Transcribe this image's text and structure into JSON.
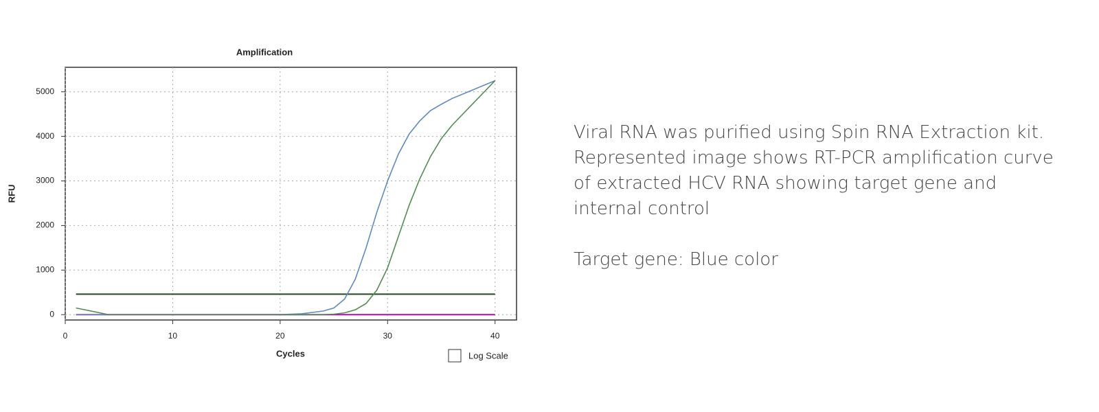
{
  "chart_data": {
    "type": "line",
    "title": "Amplification",
    "x_label": "Cycles",
    "y_label": "RFU",
    "x": [
      1,
      4,
      8,
      12,
      16,
      20,
      22,
      24,
      25,
      26,
      27,
      28,
      29,
      30,
      31,
      32,
      33,
      34,
      35,
      36,
      38,
      40
    ],
    "series": [
      {
        "color": "#5b8ac6",
        "values": [
          0,
          0,
          0,
          0,
          0,
          0,
          20,
          80,
          150,
          350,
          800,
          1500,
          2300,
          3000,
          3600,
          4050,
          4350,
          4580,
          4720,
          4850,
          5050,
          5250
        ]
      },
      {
        "color": "#4f8f4f",
        "values": [
          150,
          0,
          0,
          0,
          0,
          0,
          0,
          0,
          10,
          40,
          110,
          250,
          550,
          1050,
          1750,
          2450,
          3050,
          3550,
          3950,
          4250,
          4750,
          5250
        ]
      }
    ],
    "thresholds": [
      {
        "value": 460,
        "color": "#1b4d1b"
      },
      {
        "value": 0,
        "color": "#c000c0"
      }
    ],
    "xlim": [
      0,
      42
    ],
    "xticks": [
      0,
      10,
      20,
      30,
      40
    ],
    "ylim": [
      -120,
      5550
    ],
    "yticks": [
      0,
      1000,
      2000,
      3000,
      4000,
      5000
    ],
    "grid": true,
    "log_scale": false,
    "log_scale_label": "Log Scale"
  },
  "description": {
    "paragraph": "Viral RNA was purified using Spin RNA Extraction kit. Represented image shows RT-PCR amplification curve of extracted HCV RNA showing target gene and internal control",
    "note": "Target gene: Blue color"
  }
}
